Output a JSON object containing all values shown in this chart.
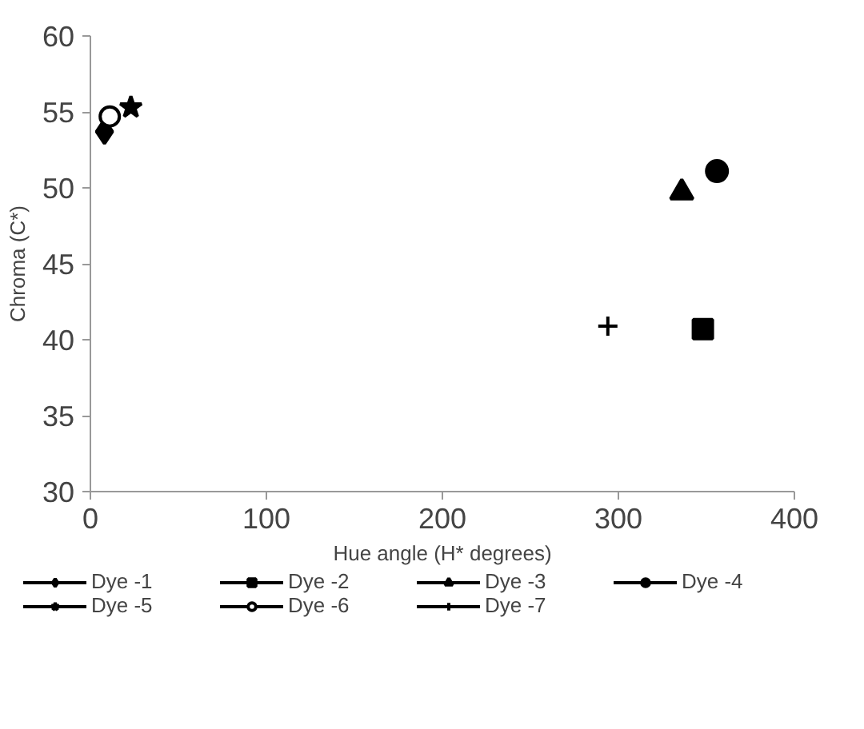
{
  "chart_data": {
    "type": "scatter",
    "xlabel": "Hue angle (H* degrees)",
    "ylabel": "Chroma (C*)",
    "xlim": [
      0,
      400
    ],
    "ylim": [
      30,
      60
    ],
    "xticks": [
      0,
      100,
      200,
      300,
      400
    ],
    "yticks": [
      30,
      35,
      40,
      45,
      50,
      55,
      60
    ],
    "grid": false,
    "legend": "bottom",
    "series": [
      {
        "name": "Dye -1",
        "color": "#000000",
        "marker": "diamond",
        "x": [
          8
        ],
        "values": [
          53.7
        ]
      },
      {
        "name": "Dye -2",
        "color": "#000000",
        "marker": "square",
        "x": [
          348
        ],
        "values": [
          40.7
        ]
      },
      {
        "name": "Dye -3",
        "color": "#000000",
        "marker": "triangle",
        "x": [
          336
        ],
        "values": [
          49.7
        ]
      },
      {
        "name": "Dye -4",
        "color": "#000000",
        "marker": "circle",
        "x": [
          356
        ],
        "values": [
          51.1
        ]
      },
      {
        "name": "Dye -5",
        "color": "#000000",
        "marker": "star",
        "x": [
          23
        ],
        "values": [
          55.3
        ]
      },
      {
        "name": "Dye -6",
        "color": "#000000",
        "marker": "circle_open",
        "x": [
          11
        ],
        "values": [
          54.7
        ]
      },
      {
        "name": "Dye -7",
        "color": "#000000",
        "marker": "cross",
        "x": [
          294
        ],
        "values": [
          40.9
        ]
      }
    ]
  }
}
